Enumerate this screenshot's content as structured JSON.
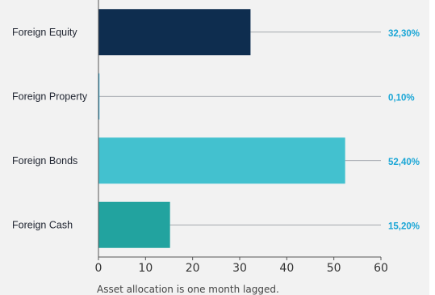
{
  "chart_data": {
    "type": "bar",
    "orientation": "horizontal",
    "categories": [
      "Foreign Equity",
      "Foreign Property",
      "Foreign Bonds",
      "Foreign Cash"
    ],
    "values": [
      32.3,
      0.1,
      52.4,
      15.2
    ],
    "value_labels": [
      "32,30%",
      "0,10%",
      "52,40%",
      "15,20%"
    ],
    "colors": [
      "#0e2d4f",
      "#1aa6d6",
      "#43c1cf",
      "#22a39f"
    ],
    "xlim": [
      0,
      60
    ],
    "xticks": [
      "0",
      "10",
      "20",
      "30",
      "40",
      "50",
      "60"
    ],
    "grid": false,
    "title": "",
    "xlabel": "",
    "ylabel": ""
  },
  "footnote": "Asset allocation is one month lagged."
}
